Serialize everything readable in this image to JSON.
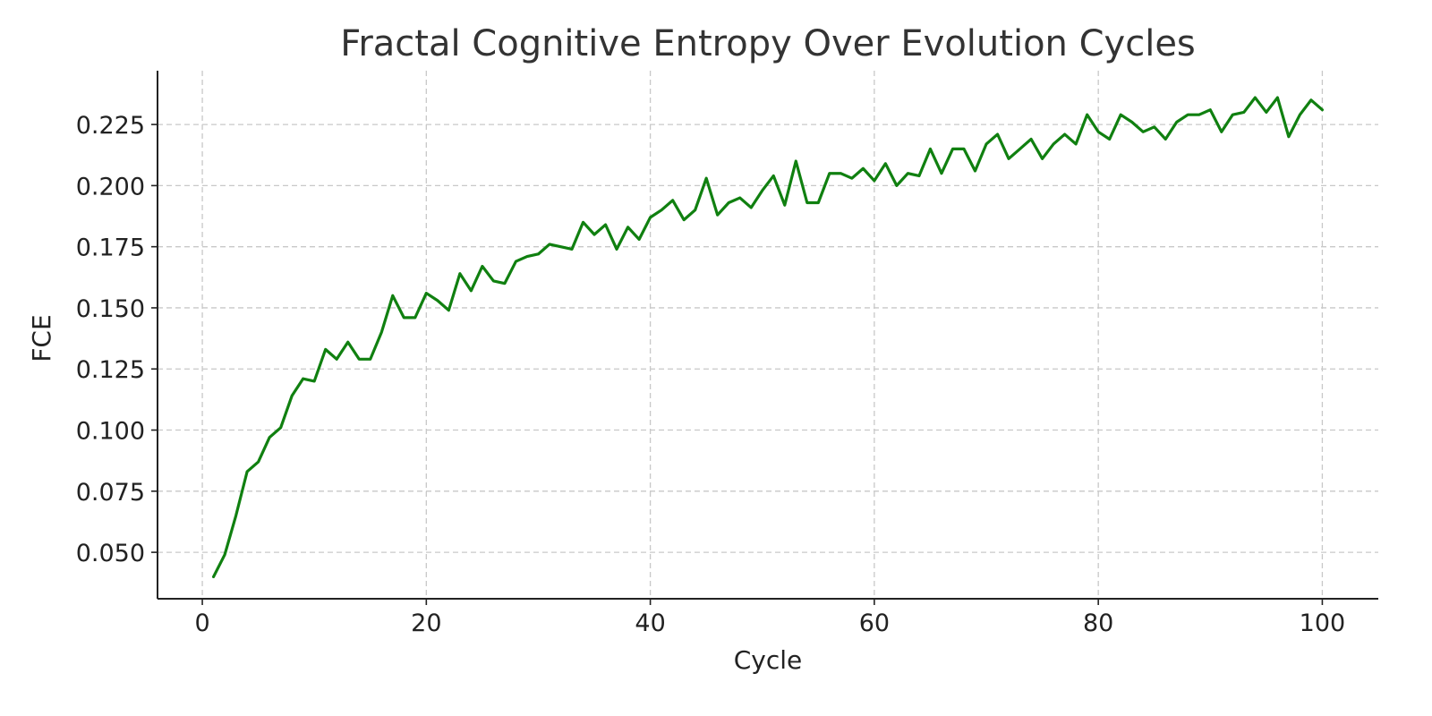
{
  "chart_data": {
    "type": "line",
    "title": "Fractal Cognitive Entropy Over Evolution Cycles",
    "xlabel": "Cycle",
    "ylabel": "FCE",
    "xlim": [
      -4,
      105
    ],
    "ylim": [
      0.031,
      0.247
    ],
    "xticks": [
      0,
      20,
      40,
      60,
      80,
      100
    ],
    "xtick_labels": [
      "0",
      "20",
      "40",
      "60",
      "80",
      "100"
    ],
    "yticks": [
      0.05,
      0.075,
      0.1,
      0.125,
      0.15,
      0.175,
      0.2,
      0.225
    ],
    "ytick_labels": [
      "0.050",
      "0.075",
      "0.100",
      "0.125",
      "0.150",
      "0.175",
      "0.200",
      "0.225"
    ],
    "grid": true,
    "series": [
      {
        "color": "#108010",
        "x": [
          1,
          2,
          3,
          4,
          5,
          6,
          7,
          8,
          9,
          10,
          11,
          12,
          13,
          14,
          15,
          16,
          17,
          18,
          19,
          20,
          21,
          22,
          23,
          24,
          25,
          26,
          27,
          28,
          29,
          30,
          31,
          32,
          33,
          34,
          35,
          36,
          37,
          38,
          39,
          40,
          41,
          42,
          43,
          44,
          45,
          46,
          47,
          48,
          49,
          50,
          51,
          52,
          53,
          54,
          55,
          56,
          57,
          58,
          59,
          60,
          61,
          62,
          63,
          64,
          65,
          66,
          67,
          68,
          69,
          70,
          71,
          72,
          73,
          74,
          75,
          76,
          77,
          78,
          79,
          80,
          81,
          82,
          83,
          84,
          85,
          86,
          87,
          88,
          89,
          90,
          91,
          92,
          93,
          94,
          95,
          96,
          97,
          98,
          99,
          100
        ],
        "values": [
          0.04,
          0.049,
          0.065,
          0.083,
          0.087,
          0.097,
          0.101,
          0.114,
          0.121,
          0.12,
          0.133,
          0.129,
          0.136,
          0.129,
          0.129,
          0.14,
          0.155,
          0.146,
          0.146,
          0.156,
          0.153,
          0.149,
          0.164,
          0.157,
          0.167,
          0.161,
          0.16,
          0.169,
          0.171,
          0.172,
          0.176,
          0.175,
          0.174,
          0.185,
          0.18,
          0.184,
          0.174,
          0.183,
          0.178,
          0.187,
          0.19,
          0.194,
          0.186,
          0.19,
          0.203,
          0.188,
          0.193,
          0.195,
          0.191,
          0.198,
          0.204,
          0.192,
          0.21,
          0.193,
          0.193,
          0.205,
          0.205,
          0.203,
          0.207,
          0.202,
          0.209,
          0.2,
          0.205,
          0.204,
          0.215,
          0.205,
          0.215,
          0.215,
          0.206,
          0.217,
          0.221,
          0.211,
          0.215,
          0.219,
          0.211,
          0.217,
          0.221,
          0.217,
          0.229,
          0.222,
          0.219,
          0.229,
          0.226,
          0.222,
          0.224,
          0.219,
          0.226,
          0.229,
          0.229,
          0.231,
          0.222,
          0.229,
          0.23,
          0.236,
          0.23,
          0.236,
          0.22,
          0.229,
          0.235,
          0.231
        ]
      }
    ]
  }
}
